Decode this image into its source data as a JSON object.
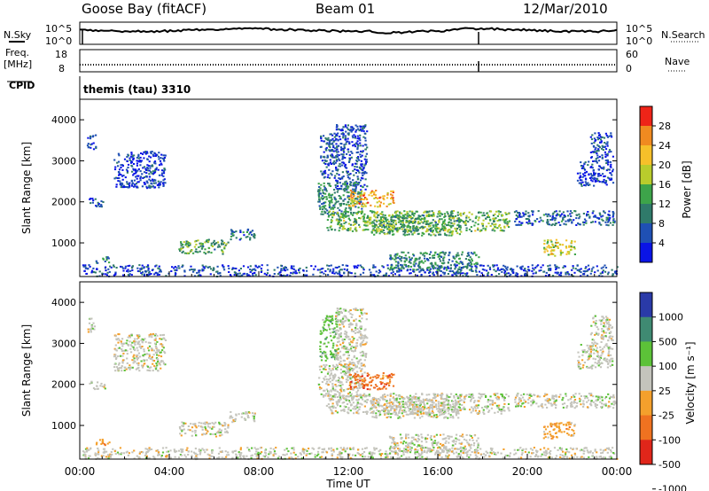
{
  "header": {
    "station": "Goose Bay (fitACF)",
    "beam": "Beam 01",
    "date": "12/Mar/2010"
  },
  "noise_panel": {
    "left_label": "N.Sky",
    "left_ticks": [
      "10^5",
      "10^0"
    ],
    "right_label": "N.Search",
    "right_ticks": [
      "10^5",
      "10^0"
    ]
  },
  "freq_panel": {
    "left_label_1": "Freq.",
    "left_label_2": "[MHz]",
    "left_ticks": [
      "18",
      "8"
    ],
    "right_label": "Nave",
    "right_ticks": [
      "60",
      "0"
    ]
  },
  "cpid": {
    "label": "CPID",
    "value": "themis (tau) 3310"
  },
  "colors": {
    "power_scale": [
      "#0a14e6",
      "#1f50b4",
      "#2f7a6a",
      "#3da44a",
      "#b9cc2c",
      "#f6c02a",
      "#f08a20",
      "#ee2418"
    ],
    "velocity_scale": [
      "#2a3aa8",
      "#3f8a72",
      "#5cc238",
      "#c4c4bc",
      "#f4a02c",
      "#ef7220",
      "#e0261a"
    ]
  },
  "chart_data": [
    {
      "type": "heatmap",
      "name": "power",
      "ylabel": "Slant Range [km]",
      "yticks": [
        "1000",
        "2000",
        "3000",
        "4000"
      ],
      "ylim": [
        180,
        4500
      ],
      "xlim": [
        0,
        24
      ],
      "colorbar_label": "Power [dB]",
      "colorbar_ticks": [
        "4",
        "8",
        "12",
        "16",
        "20",
        "24",
        "28"
      ],
      "colorbar_range": [
        0,
        30
      ],
      "regions": [
        {
          "t0": 0.1,
          "t1": 24,
          "r0": 200,
          "r1": 480,
          "v": 5
        },
        {
          "t0": 0.4,
          "t1": 1.1,
          "r0": 1900,
          "r1": 2100,
          "v": 5
        },
        {
          "t0": 0.3,
          "t1": 0.7,
          "r0": 3300,
          "r1": 3650,
          "v": 4
        },
        {
          "t0": 1.5,
          "t1": 3.8,
          "r0": 2350,
          "r1": 3250,
          "v": 4
        },
        {
          "t0": 0.7,
          "t1": 1.3,
          "r0": 520,
          "r1": 680,
          "v": 10
        },
        {
          "t0": 4.4,
          "t1": 6.6,
          "r0": 750,
          "r1": 1100,
          "v": 12
        },
        {
          "t0": 6.6,
          "t1": 7.8,
          "r0": 1100,
          "r1": 1350,
          "v": 8
        },
        {
          "t0": 10.7,
          "t1": 11.5,
          "r0": 2600,
          "r1": 3700,
          "v": 6
        },
        {
          "t0": 11.4,
          "t1": 12.8,
          "r0": 2300,
          "r1": 3900,
          "v": 5
        },
        {
          "t0": 10.6,
          "t1": 12.6,
          "r0": 1700,
          "r1": 2500,
          "v": 10
        },
        {
          "t0": 12.0,
          "t1": 14.0,
          "r0": 1900,
          "r1": 2300,
          "v": 22
        },
        {
          "t0": 11.0,
          "t1": 19.2,
          "r0": 1300,
          "r1": 1800,
          "v": 14
        },
        {
          "t0": 13.0,
          "t1": 17.0,
          "r0": 1200,
          "r1": 1700,
          "v": 12
        },
        {
          "t0": 19.4,
          "t1": 23.9,
          "r0": 1450,
          "r1": 1800,
          "v": 7
        },
        {
          "t0": 20.7,
          "t1": 22.1,
          "r0": 700,
          "r1": 1100,
          "v": 18
        },
        {
          "t0": 13.8,
          "t1": 17.8,
          "r0": 350,
          "r1": 800,
          "v": 10
        },
        {
          "t0": 22.2,
          "t1": 23.8,
          "r0": 2400,
          "r1": 3000,
          "v": 4
        },
        {
          "t0": 22.8,
          "t1": 23.8,
          "r0": 3000,
          "r1": 3700,
          "v": 5
        }
      ]
    },
    {
      "type": "heatmap",
      "name": "velocity",
      "xlabel": "Time UT",
      "ylabel": "Slant Range [km]",
      "xticks": [
        "00:00",
        "04:00",
        "08:00",
        "12:00",
        "16:00",
        "20:00",
        "00:00"
      ],
      "yticks": [
        "1000",
        "2000",
        "3000",
        "4000"
      ],
      "ylim": [
        180,
        4500
      ],
      "xlim": [
        0,
        24
      ],
      "colorbar_label": "Velocity [m s⁻¹]",
      "colorbar_ticks": [
        "1000",
        "500",
        "100",
        "25",
        "-25",
        "-100",
        "-500",
        "-1000"
      ],
      "regions": [
        {
          "t0": 0.1,
          "t1": 24,
          "r0": 200,
          "r1": 480,
          "v": 3
        },
        {
          "t0": 0.4,
          "t1": 1.1,
          "r0": 1900,
          "r1": 2100,
          "v": 3
        },
        {
          "t0": 0.3,
          "t1": 0.7,
          "r0": 3300,
          "r1": 3650,
          "v": 3
        },
        {
          "t0": 1.5,
          "t1": 3.8,
          "r0": 2350,
          "r1": 3250,
          "v": 3
        },
        {
          "t0": 0.7,
          "t1": 1.3,
          "r0": 520,
          "r1": 680,
          "v": 4
        },
        {
          "t0": 4.4,
          "t1": 6.6,
          "r0": 750,
          "r1": 1100,
          "v": 3
        },
        {
          "t0": 6.6,
          "t1": 7.8,
          "r0": 1100,
          "r1": 1350,
          "v": 3
        },
        {
          "t0": 10.7,
          "t1": 11.5,
          "r0": 2600,
          "r1": 3700,
          "v": 2
        },
        {
          "t0": 11.4,
          "t1": 12.8,
          "r0": 2300,
          "r1": 3900,
          "v": 3
        },
        {
          "t0": 10.6,
          "t1": 12.6,
          "r0": 1700,
          "r1": 2500,
          "v": 3
        },
        {
          "t0": 12.0,
          "t1": 14.0,
          "r0": 1900,
          "r1": 2300,
          "v": 5
        },
        {
          "t0": 11.0,
          "t1": 19.2,
          "r0": 1300,
          "r1": 1800,
          "v": 3
        },
        {
          "t0": 13.0,
          "t1": 17.0,
          "r0": 1200,
          "r1": 1700,
          "v": 3
        },
        {
          "t0": 19.4,
          "t1": 23.9,
          "r0": 1450,
          "r1": 1800,
          "v": 3
        },
        {
          "t0": 20.7,
          "t1": 22.1,
          "r0": 700,
          "r1": 1100,
          "v": 4
        },
        {
          "t0": 13.8,
          "t1": 17.8,
          "r0": 350,
          "r1": 800,
          "v": 3
        },
        {
          "t0": 22.2,
          "t1": 23.8,
          "r0": 2400,
          "r1": 3000,
          "v": 3
        },
        {
          "t0": 22.8,
          "t1": 23.8,
          "r0": 3000,
          "r1": 3700,
          "v": 3
        }
      ]
    }
  ]
}
